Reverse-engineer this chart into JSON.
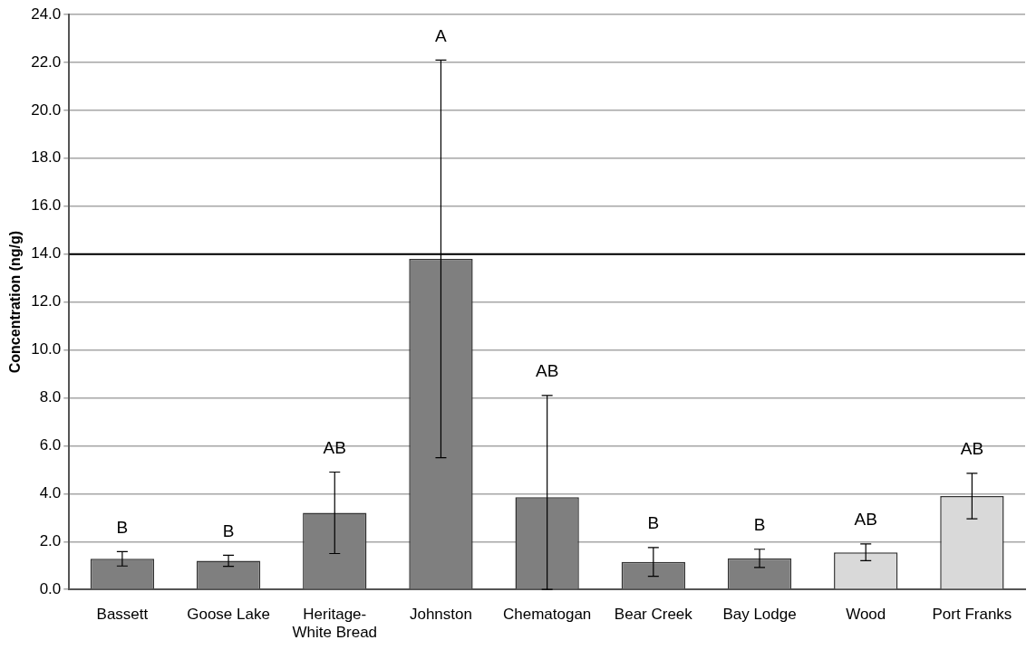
{
  "chart_data": {
    "type": "bar",
    "ylabel": "Concentration (ng/g)",
    "categories": [
      "Bassett",
      "Goose Lake",
      "Heritage-White Bread",
      "Johnston",
      "Chematogan",
      "Bear Creek",
      "Bay Lodge",
      "Wood",
      "Port Franks"
    ],
    "values": [
      1.28,
      1.2,
      3.2,
      13.8,
      3.85,
      1.15,
      1.3,
      1.55,
      3.9
    ],
    "errors": [
      0.3,
      0.23,
      1.7,
      8.3,
      [
        0,
        8.1
      ],
      0.6,
      0.38,
      0.35,
      0.95
    ],
    "colors": [
      "#7f7f7f",
      "#7f7f7f",
      "#7f7f7f",
      "#7f7f7f",
      "#7f7f7f",
      "#7f7f7f",
      "#7f7f7f",
      "#d9d9d9",
      "#d9d9d9"
    ],
    "ylim": [
      0,
      24
    ],
    "yticks": [
      {
        "value": 0,
        "label": "0.0"
      },
      {
        "value": 2,
        "label": "2.0"
      },
      {
        "value": 4,
        "label": "4.0"
      },
      {
        "value": 6,
        "label": "6.0"
      },
      {
        "value": 8,
        "label": "8.0"
      },
      {
        "value": 10,
        "label": "10.0"
      },
      {
        "value": 12,
        "label": "12.0"
      },
      {
        "value": 14,
        "label": "14.0"
      },
      {
        "value": 16,
        "label": "16.0"
      },
      {
        "value": 18,
        "label": "18.0"
      },
      {
        "value": 20,
        "label": "20.0"
      },
      {
        "value": 22,
        "label": "22.0"
      },
      {
        "value": 24,
        "label": "24.0"
      }
    ],
    "ref_lines": [
      {
        "axis": "y",
        "value": 14,
        "color": "#000000"
      }
    ],
    "annotations": [
      "B",
      "B",
      "AB",
      "A",
      "AB",
      "B",
      "B",
      "AB",
      "AB"
    ],
    "grid": "y",
    "legend": false
  }
}
